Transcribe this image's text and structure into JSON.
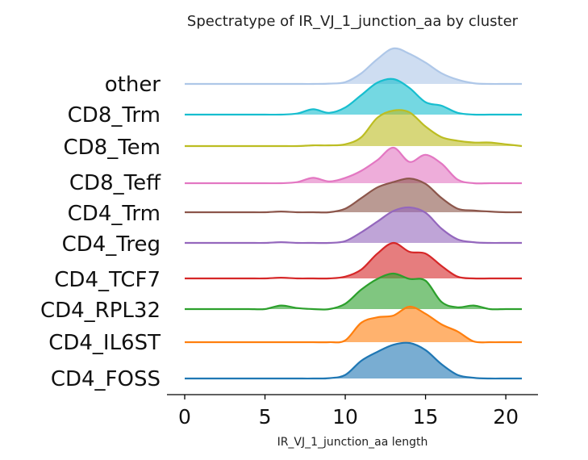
{
  "chart_data": {
    "type": "ridgeline",
    "title": "Spectratype of IR_VJ_1_junction_aa by cluster",
    "xlabel": "IR_VJ_1_junction_aa length",
    "ylabel": "",
    "xlim": [
      0,
      21
    ],
    "xticks": [
      0,
      5,
      10,
      15,
      20
    ],
    "grid": false,
    "x": [
      0,
      1,
      2,
      3,
      4,
      5,
      6,
      7,
      8,
      9,
      10,
      11,
      12,
      13,
      14,
      15,
      16,
      17,
      18,
      19,
      20,
      21
    ],
    "series": [
      {
        "name": "other",
        "color": "#aec7e8",
        "values": [
          0,
          0,
          0,
          0,
          0,
          0,
          0,
          0,
          0,
          0.01,
          0.05,
          0.3,
          0.7,
          1.0,
          0.85,
          0.6,
          0.3,
          0.12,
          0.02,
          0,
          0,
          0
        ]
      },
      {
        "name": "CD8_Trm",
        "color": "#17becf",
        "values": [
          0,
          0,
          0,
          0,
          0,
          0,
          0,
          0.03,
          0.15,
          0.05,
          0.2,
          0.55,
          0.9,
          1.0,
          0.75,
          0.35,
          0.25,
          0.05,
          0,
          0,
          0,
          0
        ]
      },
      {
        "name": "CD8_Tem",
        "color": "#bcbd22",
        "values": [
          0,
          0,
          0,
          0,
          0,
          0,
          0,
          0,
          0.02,
          0.02,
          0.05,
          0.25,
          0.8,
          1.0,
          0.95,
          0.55,
          0.25,
          0.15,
          0.1,
          0.1,
          0.05,
          0
        ]
      },
      {
        "name": "CD8_Teff",
        "color": "#e377c2",
        "values": [
          0,
          0,
          0,
          0,
          0,
          0,
          0,
          0.03,
          0.15,
          0.05,
          0.15,
          0.35,
          0.65,
          1.0,
          0.6,
          0.8,
          0.55,
          0.1,
          0,
          0,
          0,
          0
        ]
      },
      {
        "name": "CD4_Trm",
        "color": "#8c564b",
        "values": [
          0,
          0,
          0,
          0,
          0,
          0,
          0.02,
          0,
          0,
          0,
          0.1,
          0.4,
          0.7,
          0.85,
          0.95,
          0.8,
          0.4,
          0.1,
          0.05,
          0.02,
          0,
          0
        ]
      },
      {
        "name": "CD4_Treg",
        "color": "#9467bd",
        "values": [
          0,
          0,
          0,
          0,
          0,
          0,
          0.02,
          0,
          0,
          0,
          0.05,
          0.3,
          0.6,
          0.9,
          1.0,
          0.85,
          0.4,
          0.1,
          0.02,
          0,
          0,
          0
        ]
      },
      {
        "name": "CD4_TCF7",
        "color": "#d62728",
        "values": [
          0,
          0,
          0,
          0,
          0,
          0,
          0.02,
          0,
          0,
          0,
          0.05,
          0.25,
          0.7,
          1.0,
          0.75,
          0.7,
          0.35,
          0.05,
          0,
          0,
          0,
          0
        ]
      },
      {
        "name": "CD4_RPL32",
        "color": "#2ca02c",
        "values": [
          0,
          0,
          0,
          0,
          0,
          0,
          0.1,
          0.03,
          0,
          0,
          0.15,
          0.55,
          0.85,
          1.0,
          0.85,
          0.8,
          0.2,
          0.05,
          0.1,
          0,
          0,
          0
        ]
      },
      {
        "name": "CD4_IL6ST",
        "color": "#ff7f0e",
        "values": [
          0,
          0,
          0,
          0,
          0,
          0,
          0,
          0,
          0,
          0,
          0.05,
          0.55,
          0.7,
          0.75,
          1.0,
          0.8,
          0.5,
          0.3,
          0.02,
          0,
          0,
          0
        ]
      },
      {
        "name": "CD4_FOSS",
        "color": "#1f77b4",
        "values": [
          0,
          0,
          0,
          0,
          0,
          0,
          0,
          0,
          0,
          0.01,
          0.1,
          0.5,
          0.75,
          0.95,
          1.0,
          0.8,
          0.4,
          0.1,
          0.02,
          0,
          0,
          0
        ]
      }
    ]
  }
}
